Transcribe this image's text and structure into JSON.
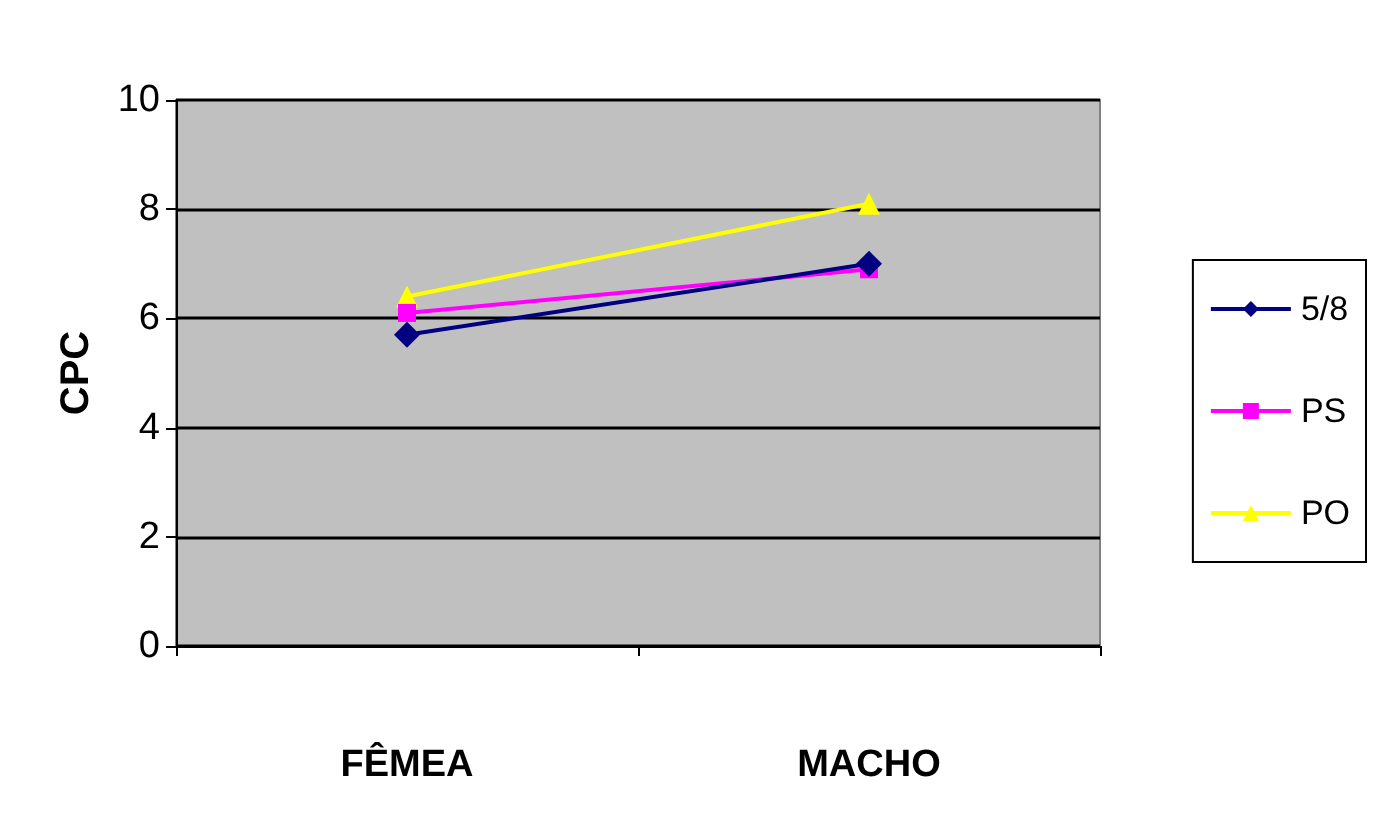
{
  "chart_data": {
    "type": "line",
    "ylabel": "CPC",
    "categories": [
      "FÊMEA",
      "MACHO"
    ],
    "ylim": [
      0,
      10
    ],
    "yticks": [
      0,
      2,
      4,
      6,
      8,
      10
    ],
    "grid": "y",
    "legend": "right",
    "series": [
      {
        "name": "5/8",
        "color": "#000080",
        "marker": "diamond",
        "values": [
          5.7,
          7.0
        ]
      },
      {
        "name": "PS",
        "color": "#ff00ff",
        "marker": "square",
        "values": [
          6.1,
          6.9
        ]
      },
      {
        "name": "PO",
        "color": "#ffff00",
        "marker": "triangle",
        "values": [
          6.4,
          8.1
        ]
      }
    ]
  }
}
